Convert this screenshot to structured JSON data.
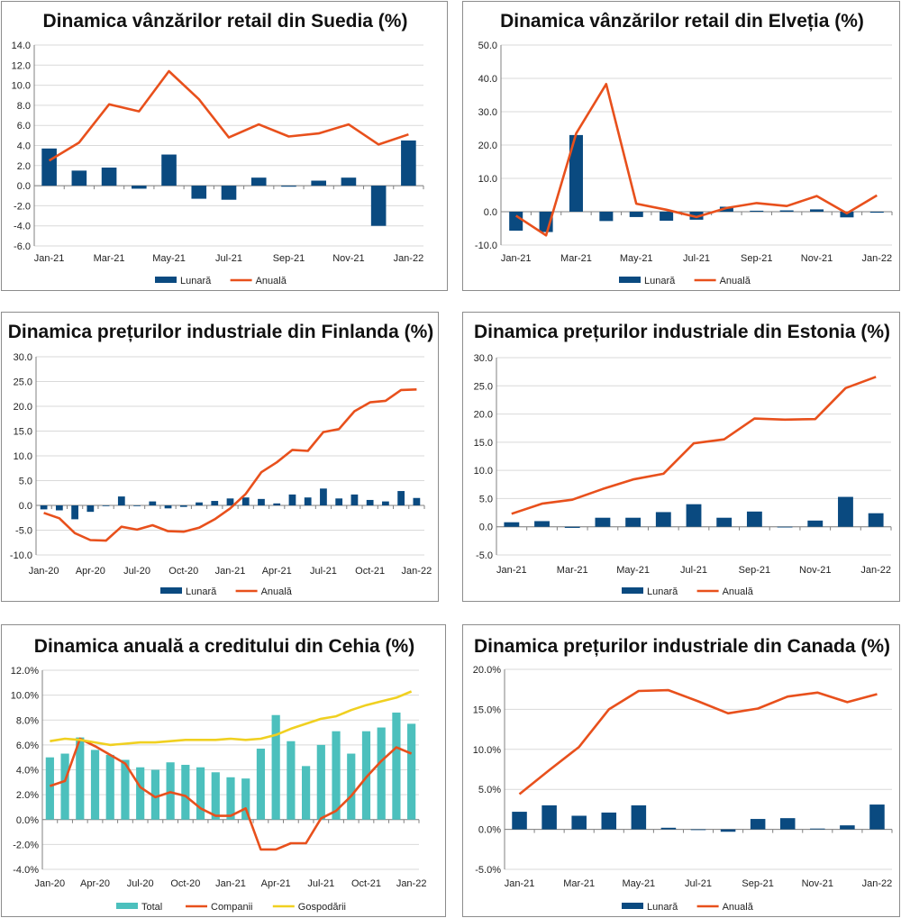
{
  "colors": {
    "bar": "#0a4a80",
    "line": "#e8501c",
    "total": "#4cc0bd",
    "companii": "#e8501c",
    "gospodarii": "#f0d020",
    "grid": "#d9d9d9",
    "axis": "#808080"
  },
  "chart_data": [
    {
      "type": "bar+line",
      "title": "Dinamica vânzărilor retail din Suedia (%)",
      "categories": [
        "Jan-21",
        "Feb-21",
        "Mar-21",
        "Apr-21",
        "May-21",
        "Jun-21",
        "Jul-21",
        "Aug-21",
        "Sep-21",
        "Oct-21",
        "Nov-21",
        "Dec-21",
        "Jan-22"
      ],
      "x_tick_labels": [
        "Jan-21",
        "Mar-21",
        "May-21",
        "Jul-21",
        "Sep-21",
        "Nov-21",
        "Jan-22"
      ],
      "ylim": [
        -6,
        14
      ],
      "ystep": 2,
      "yformat": "fixed1",
      "y_tick_labels": [
        "-6.0",
        "-4.0",
        "-2.0",
        "0.0",
        "2.0",
        "4.0",
        "6.0",
        "8.0",
        "10.0",
        "12.0",
        "14.0"
      ],
      "series": [
        {
          "name": "Lunară",
          "kind": "bar",
          "values": [
            3.7,
            1.5,
            1.8,
            -0.3,
            3.1,
            -1.3,
            -1.4,
            0.8,
            -0.1,
            0.5,
            0.8,
            -4.0,
            4.5
          ]
        },
        {
          "name": "Anuală",
          "kind": "line",
          "values": [
            2.5,
            4.3,
            8.1,
            7.4,
            11.4,
            8.6,
            4.8,
            6.1,
            4.9,
            5.2,
            6.1,
            4.1,
            5.1
          ]
        }
      ]
    },
    {
      "type": "bar+line",
      "title": "Dinamica vânzărilor retail din Elveția (%)",
      "categories": [
        "Jan-21",
        "Feb-21",
        "Mar-21",
        "Apr-21",
        "May-21",
        "Jun-21",
        "Jul-21",
        "Aug-21",
        "Sep-21",
        "Oct-21",
        "Nov-21",
        "Dec-21",
        "Jan-22"
      ],
      "x_tick_labels": [
        "Jan-21",
        "Mar-21",
        "May-21",
        "Jul-21",
        "Sep-21",
        "Nov-21",
        "Jan-22"
      ],
      "ylim": [
        -10,
        50
      ],
      "ystep": 10,
      "yformat": "fixed1",
      "y_tick_labels": [
        "-10.0",
        "0.0",
        "10.0",
        "20.0",
        "30.0",
        "40.0",
        "50.0"
      ],
      "series": [
        {
          "name": "Lunară",
          "kind": "bar",
          "values": [
            -5.7,
            -6.1,
            23.0,
            -2.8,
            -1.6,
            -2.7,
            -2.4,
            1.5,
            0.3,
            0.4,
            0.7,
            -1.7,
            -0.3
          ]
        },
        {
          "name": "Anuală",
          "kind": "line",
          "values": [
            -1.2,
            -7.1,
            23.5,
            38.3,
            2.4,
            0.6,
            -1.6,
            1.1,
            2.6,
            1.7,
            4.7,
            -0.5,
            4.9
          ]
        }
      ]
    },
    {
      "type": "bar+line",
      "title": "Dinamica prețurilor industriale din Finlanda (%)",
      "categories": [
        "Jan-20",
        "Feb-20",
        "Mar-20",
        "Apr-20",
        "May-20",
        "Jun-20",
        "Jul-20",
        "Aug-20",
        "Sep-20",
        "Oct-20",
        "Nov-20",
        "Dec-20",
        "Jan-21",
        "Feb-21",
        "Mar-21",
        "Apr-21",
        "May-21",
        "Jun-21",
        "Jul-21",
        "Aug-21",
        "Sep-21",
        "Oct-21",
        "Nov-21",
        "Dec-21",
        "Jan-22"
      ],
      "x_tick_labels": [
        "Jan-20",
        "Apr-20",
        "Jul-20",
        "Oct-20",
        "Jan-21",
        "Apr-21",
        "Jul-21",
        "Oct-21",
        "Jan-22"
      ],
      "ylim": [
        -10,
        30
      ],
      "ystep": 5,
      "yformat": "fixed1",
      "y_tick_labels": [
        "-10.0",
        "-5.0",
        "0.0",
        "5.0",
        "10.0",
        "15.0",
        "20.0",
        "25.0",
        "30.0"
      ],
      "series": [
        {
          "name": "Lunară",
          "kind": "bar",
          "values": [
            -0.8,
            -1.0,
            -2.8,
            -1.3,
            -0.1,
            1.8,
            -0.1,
            0.8,
            -0.6,
            -0.3,
            0.6,
            0.9,
            1.4,
            1.6,
            1.3,
            0.4,
            2.2,
            1.6,
            3.4,
            1.4,
            2.2,
            1.1,
            0.8,
            2.9,
            1.5
          ]
        },
        {
          "name": "Anuală",
          "kind": "line",
          "values": [
            -1.5,
            -2.6,
            -5.6,
            -7.0,
            -7.1,
            -4.3,
            -4.9,
            -4.0,
            -5.2,
            -5.3,
            -4.5,
            -2.8,
            -0.6,
            2.3,
            6.7,
            8.7,
            11.2,
            11.0,
            14.8,
            15.4,
            19.0,
            20.8,
            21.1,
            23.3,
            23.4
          ]
        }
      ]
    },
    {
      "type": "bar+line",
      "title": "Dinamica prețurilor industriale din Estonia (%)",
      "categories": [
        "Jan-21",
        "Feb-21",
        "Mar-21",
        "Apr-21",
        "May-21",
        "Jun-21",
        "Jul-21",
        "Aug-21",
        "Sep-21",
        "Oct-21",
        "Nov-21",
        "Dec-21",
        "Jan-22"
      ],
      "x_tick_labels": [
        "Jan-21",
        "Mar-21",
        "May-21",
        "Jul-21",
        "Sep-21",
        "Nov-21",
        "Jan-22"
      ],
      "ylim": [
        -5,
        30
      ],
      "ystep": 5,
      "yformat": "fixed1",
      "y_tick_labels": [
        "-5.0",
        "0.0",
        "5.0",
        "10.0",
        "15.0",
        "20.0",
        "25.0",
        "30.0"
      ],
      "series": [
        {
          "name": "Lunară",
          "kind": "bar",
          "values": [
            0.8,
            1.0,
            -0.2,
            1.6,
            1.6,
            2.6,
            4.0,
            1.6,
            2.7,
            -0.1,
            1.1,
            5.3,
            2.4
          ]
        },
        {
          "name": "Anuală",
          "kind": "line",
          "values": [
            2.3,
            4.1,
            4.8,
            6.7,
            8.4,
            9.4,
            14.8,
            15.5,
            19.2,
            19.0,
            19.1,
            24.6,
            26.6
          ]
        }
      ]
    },
    {
      "type": "bar+line",
      "title": "Dinamica anuală a creditului din Cehia (%)",
      "categories": [
        "Jan-20",
        "Feb-20",
        "Mar-20",
        "Apr-20",
        "May-20",
        "Jun-20",
        "Jul-20",
        "Aug-20",
        "Sep-20",
        "Oct-20",
        "Nov-20",
        "Dec-20",
        "Jan-21",
        "Feb-21",
        "Mar-21",
        "Apr-21",
        "May-21",
        "Jun-21",
        "Jul-21",
        "Aug-21",
        "Sep-21",
        "Oct-21",
        "Nov-21",
        "Dec-21",
        "Jan-22"
      ],
      "x_tick_labels": [
        "Jan-20",
        "Apr-20",
        "Jul-20",
        "Oct-20",
        "Jan-21",
        "Apr-21",
        "Jul-21",
        "Oct-21",
        "Jan-22"
      ],
      "ylim": [
        -4,
        12
      ],
      "ystep": 2,
      "yformat": "percent1",
      "y_tick_labels": [
        "-4.0%",
        "-2.0%",
        "0.0%",
        "2.0%",
        "4.0%",
        "6.0%",
        "8.0%",
        "10.0%",
        "12.0%"
      ],
      "series": [
        {
          "name": "Total",
          "kind": "bar",
          "values": [
            5.0,
            5.3,
            6.6,
            5.6,
            5.2,
            4.8,
            4.2,
            4.0,
            4.6,
            4.4,
            4.2,
            3.8,
            3.4,
            3.3,
            5.7,
            8.4,
            6.3,
            4.3,
            6.0,
            7.1,
            5.3,
            7.1,
            7.4,
            8.6,
            7.7
          ]
        },
        {
          "name": "Companii",
          "kind": "line",
          "values": [
            2.7,
            3.1,
            6.5,
            5.9,
            5.2,
            4.5,
            2.6,
            1.8,
            2.2,
            1.9,
            0.9,
            0.3,
            0.3,
            0.9,
            -2.4,
            -2.4,
            -1.9,
            -1.9,
            0.1,
            0.7,
            1.9,
            3.4,
            4.7,
            5.8,
            5.3
          ]
        },
        {
          "name": "Gospodării",
          "kind": "line",
          "values": [
            6.3,
            6.5,
            6.4,
            6.2,
            6.0,
            6.1,
            6.2,
            6.2,
            6.3,
            6.4,
            6.4,
            6.4,
            6.5,
            6.4,
            6.5,
            6.8,
            7.3,
            7.7,
            8.1,
            8.3,
            8.8,
            9.2,
            9.5,
            9.8,
            10.3
          ]
        }
      ]
    },
    {
      "type": "bar+line",
      "title": "Dinamica prețurilor industriale din Canada (%)",
      "categories": [
        "Jan-21",
        "Feb-21",
        "Mar-21",
        "Apr-21",
        "May-21",
        "Jun-21",
        "Jul-21",
        "Aug-21",
        "Sep-21",
        "Oct-21",
        "Nov-21",
        "Dec-21",
        "Jan-22"
      ],
      "x_tick_labels": [
        "Jan-21",
        "Mar-21",
        "May-21",
        "Jul-21",
        "Sep-21",
        "Nov-21",
        "Jan-22"
      ],
      "ylim": [
        -5,
        20
      ],
      "ystep": 5,
      "yformat": "percent1",
      "y_tick_labels": [
        "-5.0%",
        "0.0%",
        "5.0%",
        "10.0%",
        "15.0%",
        "20.0%"
      ],
      "series": [
        {
          "name": "Lunară",
          "kind": "bar",
          "values": [
            2.2,
            3.0,
            1.7,
            2.1,
            3.0,
            0.2,
            0.0,
            -0.3,
            1.3,
            1.4,
            0.1,
            0.5,
            3.1
          ]
        },
        {
          "name": "Anuală",
          "kind": "line",
          "values": [
            4.4,
            7.4,
            10.3,
            15.0,
            17.3,
            17.4,
            16.0,
            14.5,
            15.1,
            16.6,
            17.1,
            15.9,
            16.9
          ]
        }
      ]
    }
  ]
}
